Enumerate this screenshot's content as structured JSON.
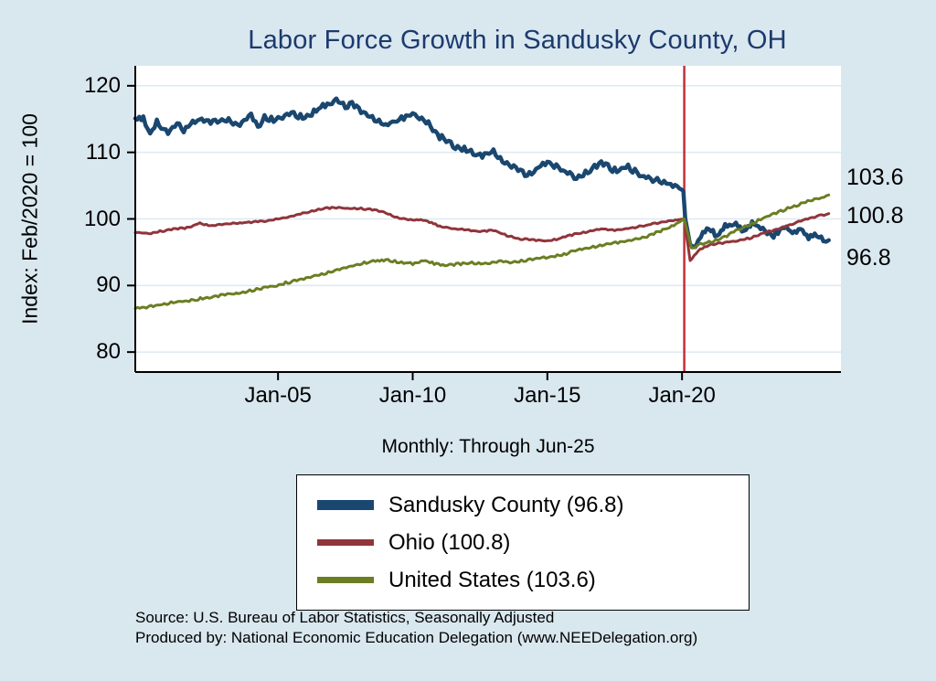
{
  "title": "Labor Force Growth in Sandusky  County, OH",
  "y_axis_label": "Index: Feb/2020 = 100",
  "x_axis_subtitle": "Monthly: Through Jun-25",
  "end_labels": {
    "united_states": "103.6",
    "ohio": "100.8",
    "sandusky_county": "96.8"
  },
  "legend": {
    "items": [
      {
        "label": "Sandusky  County (96.8)",
        "color": "#1a476f",
        "swatch_height": 11
      },
      {
        "label": "Ohio (100.8)",
        "color": "#90353b",
        "swatch_height": 7
      },
      {
        "label": "United States (103.6)",
        "color": "#6b7e23",
        "swatch_height": 7
      }
    ]
  },
  "footer": {
    "source": "Source: U.S. Bureau of Labor Statistics, Seasonally Adjusted",
    "produced_by": "Produced by: National Economic Education Delegation (www.NEEDelegation.org)"
  },
  "colors": {
    "background": "#d9e7ef",
    "title": "#1c3a6e",
    "grid": "#dde9f1",
    "axis": "#000000",
    "event_line": "#c0303c",
    "sandusky": "#1a476f",
    "ohio": "#90353b",
    "united_states": "#6b7e23"
  },
  "chart_data": {
    "type": "line",
    "title": "Labor Force Growth in Sandusky  County, OH",
    "xlabel": "Monthly: Through Jun-25",
    "ylabel": "Index: Feb/2020 = 100",
    "xlim": [
      1999.7,
      2025.9
    ],
    "ylim": [
      77,
      123
    ],
    "y_ticks": [
      80,
      90,
      100,
      110,
      120
    ],
    "x_ticks": [
      {
        "value": 2005,
        "label": "Jan-05"
      },
      {
        "value": 2010,
        "label": "Jan-10"
      },
      {
        "value": 2015,
        "label": "Jan-15"
      },
      {
        "value": 2020,
        "label": "Jan-20"
      }
    ],
    "grid": true,
    "legend_position": "bottom",
    "vline": {
      "x": 2020.083,
      "color": "#c0303c"
    },
    "series": [
      {
        "name": "Sandusky  County (96.8)",
        "color": "#1a476f",
        "width": 4.5,
        "noise": 0.45,
        "points": [
          [
            1999.7,
            114.8
          ],
          [
            2000.0,
            115.3
          ],
          [
            2000.25,
            112.8
          ],
          [
            2000.5,
            114.6
          ],
          [
            2000.75,
            113.5
          ],
          [
            2001.0,
            113.0
          ],
          [
            2001.25,
            114.3
          ],
          [
            2001.5,
            113.4
          ],
          [
            2001.75,
            114.6
          ],
          [
            2002.0,
            114.9
          ],
          [
            2002.5,
            114.3
          ],
          [
            2003.0,
            115.1
          ],
          [
            2003.5,
            114.2
          ],
          [
            2004.0,
            115.4
          ],
          [
            2004.25,
            113.7
          ],
          [
            2004.5,
            115.2
          ],
          [
            2005.0,
            114.9
          ],
          [
            2005.5,
            115.8
          ],
          [
            2006.0,
            115.2
          ],
          [
            2006.5,
            116.6
          ],
          [
            2007.0,
            117.3
          ],
          [
            2007.25,
            117.9
          ],
          [
            2007.5,
            116.8
          ],
          [
            2007.75,
            117.6
          ],
          [
            2008.0,
            116.4
          ],
          [
            2008.5,
            115.1
          ],
          [
            2009.0,
            114.2
          ],
          [
            2009.5,
            114.9
          ],
          [
            2010.0,
            115.7
          ],
          [
            2010.5,
            114.7
          ],
          [
            2011.0,
            112.4
          ],
          [
            2011.5,
            111.0
          ],
          [
            2012.0,
            110.4
          ],
          [
            2012.5,
            109.5
          ],
          [
            2013.0,
            110.0
          ],
          [
            2013.5,
            108.4
          ],
          [
            2014.0,
            107.1
          ],
          [
            2014.25,
            106.4
          ],
          [
            2014.75,
            108.0
          ],
          [
            2015.0,
            108.7
          ],
          [
            2015.5,
            107.3
          ],
          [
            2016.0,
            106.3
          ],
          [
            2016.5,
            107.0
          ],
          [
            2017.0,
            108.4
          ],
          [
            2017.5,
            107.3
          ],
          [
            2018.0,
            107.9
          ],
          [
            2018.5,
            106.3
          ],
          [
            2019.0,
            105.9
          ],
          [
            2019.5,
            105.4
          ],
          [
            2019.9,
            104.6
          ],
          [
            2020.05,
            104.2
          ],
          [
            2020.12,
            100.0
          ],
          [
            2020.3,
            96.2
          ],
          [
            2020.5,
            96.0
          ],
          [
            2020.7,
            97.6
          ],
          [
            2021.0,
            98.6
          ],
          [
            2021.3,
            97.4
          ],
          [
            2021.6,
            98.8
          ],
          [
            2022.0,
            99.2
          ],
          [
            2022.3,
            98.1
          ],
          [
            2022.6,
            99.6
          ],
          [
            2023.0,
            98.3
          ],
          [
            2023.4,
            97.6
          ],
          [
            2023.8,
            98.9
          ],
          [
            2024.1,
            97.9
          ],
          [
            2024.4,
            98.6
          ],
          [
            2024.7,
            97.3
          ],
          [
            2025.0,
            97.8
          ],
          [
            2025.25,
            96.9
          ],
          [
            2025.45,
            96.8
          ]
        ]
      },
      {
        "name": "Ohio (100.8)",
        "color": "#90353b",
        "width": 3,
        "noise": 0.12,
        "points": [
          [
            1999.7,
            98.0
          ],
          [
            2000.2,
            97.8
          ],
          [
            2000.7,
            98.2
          ],
          [
            2001.2,
            98.5
          ],
          [
            2001.7,
            98.7
          ],
          [
            2002.1,
            99.4
          ],
          [
            2002.5,
            98.9
          ],
          [
            2003.0,
            99.2
          ],
          [
            2003.5,
            99.4
          ],
          [
            2004.0,
            99.5
          ],
          [
            2004.5,
            99.7
          ],
          [
            2005.0,
            100.0
          ],
          [
            2005.5,
            100.4
          ],
          [
            2006.0,
            100.9
          ],
          [
            2006.5,
            101.4
          ],
          [
            2007.0,
            101.7
          ],
          [
            2007.5,
            101.6
          ],
          [
            2008.0,
            101.6
          ],
          [
            2008.5,
            101.4
          ],
          [
            2009.0,
            100.9
          ],
          [
            2009.5,
            100.1
          ],
          [
            2010.0,
            99.8
          ],
          [
            2010.3,
            99.9
          ],
          [
            2010.7,
            99.4
          ],
          [
            2011.0,
            98.9
          ],
          [
            2011.5,
            98.5
          ],
          [
            2012.0,
            98.4
          ],
          [
            2012.5,
            98.1
          ],
          [
            2013.0,
            98.3
          ],
          [
            2013.5,
            97.5
          ],
          [
            2014.0,
            97.0
          ],
          [
            2014.5,
            96.8
          ],
          [
            2015.0,
            96.7
          ],
          [
            2015.5,
            97.1
          ],
          [
            2016.0,
            97.7
          ],
          [
            2016.5,
            98.1
          ],
          [
            2017.0,
            98.5
          ],
          [
            2017.5,
            98.3
          ],
          [
            2018.0,
            98.6
          ],
          [
            2018.5,
            98.9
          ],
          [
            2019.0,
            99.3
          ],
          [
            2019.5,
            99.7
          ],
          [
            2020.083,
            100.0
          ],
          [
            2020.3,
            93.7
          ],
          [
            2020.6,
            95.2
          ],
          [
            2021.0,
            96.1
          ],
          [
            2021.5,
            96.4
          ],
          [
            2022.0,
            96.7
          ],
          [
            2022.5,
            97.1
          ],
          [
            2023.0,
            97.8
          ],
          [
            2023.5,
            98.4
          ],
          [
            2024.0,
            99.1
          ],
          [
            2024.5,
            99.8
          ],
          [
            2025.0,
            100.4
          ],
          [
            2025.45,
            100.8
          ]
        ]
      },
      {
        "name": "United States (103.6)",
        "color": "#6b7e23",
        "width": 3,
        "noise": 0.18,
        "points": [
          [
            1999.7,
            86.5
          ],
          [
            2000.2,
            86.8
          ],
          [
            2000.7,
            87.2
          ],
          [
            2001.2,
            87.5
          ],
          [
            2001.7,
            87.7
          ],
          [
            2002.2,
            88.1
          ],
          [
            2002.7,
            88.4
          ],
          [
            2003.2,
            88.7
          ],
          [
            2003.7,
            89.0
          ],
          [
            2004.2,
            89.4
          ],
          [
            2004.7,
            89.8
          ],
          [
            2005.2,
            90.3
          ],
          [
            2005.7,
            90.8
          ],
          [
            2006.2,
            91.3
          ],
          [
            2006.7,
            91.8
          ],
          [
            2007.2,
            92.3
          ],
          [
            2007.7,
            92.9
          ],
          [
            2008.2,
            93.4
          ],
          [
            2008.7,
            93.7
          ],
          [
            2009.0,
            93.8
          ],
          [
            2009.5,
            93.5
          ],
          [
            2010.0,
            93.3
          ],
          [
            2010.4,
            93.7
          ],
          [
            2010.8,
            93.3
          ],
          [
            2011.2,
            93.1
          ],
          [
            2011.7,
            93.2
          ],
          [
            2012.2,
            93.4
          ],
          [
            2012.7,
            93.3
          ],
          [
            2013.2,
            93.6
          ],
          [
            2013.7,
            93.5
          ],
          [
            2014.2,
            93.8
          ],
          [
            2014.7,
            94.1
          ],
          [
            2015.2,
            94.4
          ],
          [
            2015.7,
            94.8
          ],
          [
            2016.2,
            95.4
          ],
          [
            2016.7,
            95.8
          ],
          [
            2017.2,
            96.2
          ],
          [
            2017.7,
            96.5
          ],
          [
            2018.2,
            96.9
          ],
          [
            2018.7,
            97.4
          ],
          [
            2019.2,
            98.2
          ],
          [
            2019.7,
            99.0
          ],
          [
            2020.083,
            100.0
          ],
          [
            2020.35,
            95.6
          ],
          [
            2020.7,
            96.2
          ],
          [
            2021.0,
            96.5
          ],
          [
            2021.5,
            97.1
          ],
          [
            2022.0,
            98.2
          ],
          [
            2022.5,
            99.1
          ],
          [
            2023.0,
            100.1
          ],
          [
            2023.5,
            100.9
          ],
          [
            2024.0,
            101.7
          ],
          [
            2024.5,
            102.4
          ],
          [
            2025.0,
            103.0
          ],
          [
            2025.45,
            103.6
          ]
        ]
      }
    ]
  }
}
